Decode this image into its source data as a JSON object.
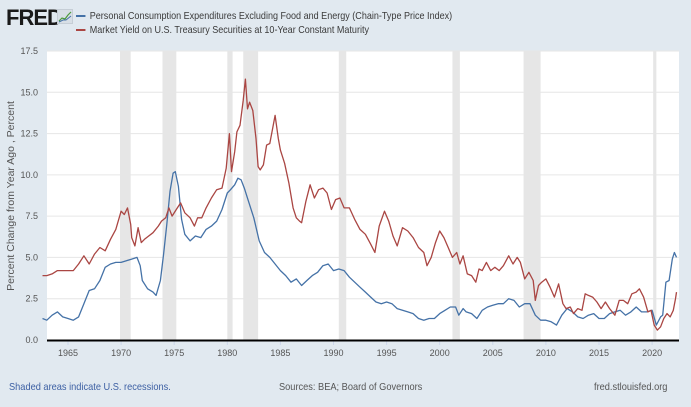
{
  "header": {
    "logo_text": "FRED",
    "logo_icon": "chart-graph-icon"
  },
  "footer": {
    "recession_note": "Shaded areas indicate U.S. recessions.",
    "sources": "Sources: BEA; Board of Governors",
    "site": "fred.stlouisfed.org"
  },
  "colors": {
    "background": "#e1e9f0",
    "plot_bg": "#ffffff",
    "series1": "#4572a7",
    "series2": "#aa4643",
    "recession": "#e6e6e6",
    "grid": "#e6e6e6",
    "link": "#3c5fa3"
  },
  "chart_data": {
    "type": "line",
    "title": "",
    "xlabel": "",
    "ylabel": "Percent Change from Year Ago , Percent",
    "xlim": [
      1962.6,
      2022.3
    ],
    "ylim": [
      0,
      17.5
    ],
    "yticks": [
      "0.0",
      "2.5",
      "5.0",
      "7.5",
      "10.0",
      "12.5",
      "15.0",
      "17.5"
    ],
    "xticks": [
      "1965",
      "1970",
      "1975",
      "1980",
      "1985",
      "1990",
      "1995",
      "2000",
      "2005",
      "2010",
      "2015",
      "2020"
    ],
    "grid": true,
    "legend_position": "top-left",
    "recessions": [
      [
        1969.9,
        1970.9
      ],
      [
        1973.9,
        1975.2
      ],
      [
        1980.0,
        1980.5
      ],
      [
        1981.5,
        1982.9
      ],
      [
        1990.5,
        1991.2
      ],
      [
        2001.2,
        2001.9
      ],
      [
        2007.9,
        2009.5
      ],
      [
        2020.1,
        2020.4
      ]
    ],
    "series": [
      {
        "name": "Personal Consumption Expenditures Excluding Food and Energy (Chain-Type Price Index)",
        "color": "#4572a7",
        "points": [
          [
            1962.6,
            1.3
          ],
          [
            1963.0,
            1.2
          ],
          [
            1963.5,
            1.5
          ],
          [
            1964.0,
            1.7
          ],
          [
            1964.5,
            1.4
          ],
          [
            1965.0,
            1.3
          ],
          [
            1965.5,
            1.2
          ],
          [
            1966.0,
            1.4
          ],
          [
            1966.5,
            2.2
          ],
          [
            1967.0,
            3.0
          ],
          [
            1967.5,
            3.1
          ],
          [
            1968.0,
            3.6
          ],
          [
            1968.5,
            4.4
          ],
          [
            1969.0,
            4.6
          ],
          [
            1969.5,
            4.7
          ],
          [
            1970.0,
            4.7
          ],
          [
            1970.5,
            4.8
          ],
          [
            1971.0,
            4.9
          ],
          [
            1971.5,
            5.0
          ],
          [
            1971.8,
            4.5
          ],
          [
            1972.0,
            3.6
          ],
          [
            1972.5,
            3.1
          ],
          [
            1973.0,
            2.9
          ],
          [
            1973.3,
            2.7
          ],
          [
            1973.7,
            3.6
          ],
          [
            1974.0,
            5.2
          ],
          [
            1974.3,
            7.0
          ],
          [
            1974.6,
            9.0
          ],
          [
            1974.9,
            10.1
          ],
          [
            1975.1,
            10.2
          ],
          [
            1975.4,
            9.3
          ],
          [
            1975.7,
            7.3
          ],
          [
            1976.0,
            6.4
          ],
          [
            1976.5,
            6.0
          ],
          [
            1977.0,
            6.3
          ],
          [
            1977.5,
            6.2
          ],
          [
            1978.0,
            6.7
          ],
          [
            1978.5,
            6.9
          ],
          [
            1979.0,
            7.2
          ],
          [
            1979.5,
            7.9
          ],
          [
            1980.0,
            8.9
          ],
          [
            1980.3,
            9.1
          ],
          [
            1980.7,
            9.4
          ],
          [
            1981.0,
            9.8
          ],
          [
            1981.3,
            9.7
          ],
          [
            1981.6,
            9.2
          ],
          [
            1982.0,
            8.4
          ],
          [
            1982.5,
            7.4
          ],
          [
            1983.0,
            6.0
          ],
          [
            1983.5,
            5.3
          ],
          [
            1984.0,
            5.0
          ],
          [
            1984.5,
            4.6
          ],
          [
            1985.0,
            4.2
          ],
          [
            1985.5,
            3.9
          ],
          [
            1986.0,
            3.5
          ],
          [
            1986.5,
            3.7
          ],
          [
            1987.0,
            3.3
          ],
          [
            1987.5,
            3.6
          ],
          [
            1988.0,
            3.9
          ],
          [
            1988.5,
            4.1
          ],
          [
            1989.0,
            4.5
          ],
          [
            1989.5,
            4.6
          ],
          [
            1990.0,
            4.2
          ],
          [
            1990.5,
            4.3
          ],
          [
            1991.0,
            4.2
          ],
          [
            1991.5,
            3.8
          ],
          [
            1992.0,
            3.5
          ],
          [
            1992.5,
            3.2
          ],
          [
            1993.0,
            2.9
          ],
          [
            1993.5,
            2.6
          ],
          [
            1994.0,
            2.3
          ],
          [
            1994.5,
            2.2
          ],
          [
            1995.0,
            2.3
          ],
          [
            1995.5,
            2.2
          ],
          [
            1996.0,
            1.9
          ],
          [
            1996.5,
            1.8
          ],
          [
            1997.0,
            1.7
          ],
          [
            1997.5,
            1.6
          ],
          [
            1998.0,
            1.3
          ],
          [
            1998.5,
            1.2
          ],
          [
            1999.0,
            1.3
          ],
          [
            1999.5,
            1.3
          ],
          [
            2000.0,
            1.6
          ],
          [
            2000.5,
            1.8
          ],
          [
            2001.0,
            2.0
          ],
          [
            2001.5,
            2.0
          ],
          [
            2001.8,
            1.5
          ],
          [
            2002.2,
            1.9
          ],
          [
            2002.5,
            1.7
          ],
          [
            2003.0,
            1.6
          ],
          [
            2003.5,
            1.3
          ],
          [
            2004.0,
            1.8
          ],
          [
            2004.5,
            2.0
          ],
          [
            2005.0,
            2.1
          ],
          [
            2005.5,
            2.2
          ],
          [
            2006.0,
            2.2
          ],
          [
            2006.5,
            2.5
          ],
          [
            2007.0,
            2.4
          ],
          [
            2007.5,
            2.0
          ],
          [
            2008.0,
            2.2
          ],
          [
            2008.5,
            2.2
          ],
          [
            2009.0,
            1.5
          ],
          [
            2009.5,
            1.2
          ],
          [
            2010.0,
            1.2
          ],
          [
            2010.5,
            1.1
          ],
          [
            2011.0,
            0.9
          ],
          [
            2011.5,
            1.5
          ],
          [
            2012.0,
            1.9
          ],
          [
            2012.5,
            1.7
          ],
          [
            2013.0,
            1.4
          ],
          [
            2013.5,
            1.3
          ],
          [
            2014.0,
            1.5
          ],
          [
            2014.5,
            1.6
          ],
          [
            2015.0,
            1.3
          ],
          [
            2015.5,
            1.3
          ],
          [
            2016.0,
            1.6
          ],
          [
            2016.5,
            1.7
          ],
          [
            2017.0,
            1.8
          ],
          [
            2017.5,
            1.5
          ],
          [
            2018.0,
            1.7
          ],
          [
            2018.5,
            2.0
          ],
          [
            2019.0,
            1.7
          ],
          [
            2019.5,
            1.7
          ],
          [
            2020.0,
            1.8
          ],
          [
            2020.4,
            0.9
          ],
          [
            2020.8,
            1.4
          ],
          [
            2021.0,
            1.5
          ],
          [
            2021.3,
            3.5
          ],
          [
            2021.6,
            3.6
          ],
          [
            2021.9,
            4.9
          ],
          [
            2022.1,
            5.3
          ],
          [
            2022.3,
            5.0
          ]
        ]
      },
      {
        "name": "Market Yield on U.S. Treasury Securities at 10-Year Constant Maturity",
        "color": "#aa4643",
        "points": [
          [
            1962.6,
            3.9
          ],
          [
            1963.0,
            3.9
          ],
          [
            1963.5,
            4.0
          ],
          [
            1964.0,
            4.2
          ],
          [
            1964.5,
            4.2
          ],
          [
            1965.0,
            4.2
          ],
          [
            1965.5,
            4.2
          ],
          [
            1966.0,
            4.6
          ],
          [
            1966.5,
            5.1
          ],
          [
            1967.0,
            4.6
          ],
          [
            1967.5,
            5.2
          ],
          [
            1968.0,
            5.6
          ],
          [
            1968.5,
            5.4
          ],
          [
            1969.0,
            6.1
          ],
          [
            1969.5,
            6.7
          ],
          [
            1970.0,
            7.8
          ],
          [
            1970.3,
            7.6
          ],
          [
            1970.6,
            8.0
          ],
          [
            1970.9,
            7.0
          ],
          [
            1971.0,
            6.2
          ],
          [
            1971.3,
            5.7
          ],
          [
            1971.6,
            6.8
          ],
          [
            1971.9,
            5.9
          ],
          [
            1972.2,
            6.1
          ],
          [
            1972.6,
            6.3
          ],
          [
            1973.0,
            6.5
          ],
          [
            1973.5,
            6.9
          ],
          [
            1973.8,
            7.2
          ],
          [
            1974.2,
            7.4
          ],
          [
            1974.5,
            8.0
          ],
          [
            1974.8,
            7.5
          ],
          [
            1975.2,
            7.9
          ],
          [
            1975.6,
            8.3
          ],
          [
            1976.0,
            7.7
          ],
          [
            1976.5,
            7.4
          ],
          [
            1976.9,
            6.9
          ],
          [
            1977.2,
            7.4
          ],
          [
            1977.6,
            7.4
          ],
          [
            1978.0,
            8.0
          ],
          [
            1978.5,
            8.6
          ],
          [
            1979.0,
            9.1
          ],
          [
            1979.5,
            9.2
          ],
          [
            1979.9,
            10.4
          ],
          [
            1980.2,
            12.5
          ],
          [
            1980.4,
            10.2
          ],
          [
            1980.7,
            11.4
          ],
          [
            1980.9,
            12.6
          ],
          [
            1981.2,
            13.0
          ],
          [
            1981.5,
            14.5
          ],
          [
            1981.7,
            15.8
          ],
          [
            1981.9,
            14.0
          ],
          [
            1982.1,
            14.4
          ],
          [
            1982.4,
            13.9
          ],
          [
            1982.7,
            12.2
          ],
          [
            1982.9,
            10.5
          ],
          [
            1983.1,
            10.3
          ],
          [
            1983.4,
            10.6
          ],
          [
            1983.7,
            11.8
          ],
          [
            1984.0,
            11.9
          ],
          [
            1984.5,
            13.6
          ],
          [
            1984.8,
            12.2
          ],
          [
            1985.0,
            11.5
          ],
          [
            1985.4,
            10.7
          ],
          [
            1985.8,
            9.5
          ],
          [
            1986.2,
            8.0
          ],
          [
            1986.5,
            7.4
          ],
          [
            1986.8,
            7.2
          ],
          [
            1987.0,
            7.1
          ],
          [
            1987.4,
            8.4
          ],
          [
            1987.8,
            9.4
          ],
          [
            1988.2,
            8.6
          ],
          [
            1988.6,
            9.1
          ],
          [
            1989.0,
            9.2
          ],
          [
            1989.4,
            8.9
          ],
          [
            1989.8,
            7.9
          ],
          [
            1990.2,
            8.5
          ],
          [
            1990.6,
            8.6
          ],
          [
            1991.0,
            8.0
          ],
          [
            1991.5,
            8.0
          ],
          [
            1992.0,
            7.3
          ],
          [
            1992.5,
            6.7
          ],
          [
            1993.0,
            6.4
          ],
          [
            1993.5,
            5.8
          ],
          [
            1993.9,
            5.3
          ],
          [
            1994.3,
            6.9
          ],
          [
            1994.8,
            7.8
          ],
          [
            1995.2,
            7.2
          ],
          [
            1995.6,
            6.3
          ],
          [
            1996.0,
            5.7
          ],
          [
            1996.5,
            6.8
          ],
          [
            1997.0,
            6.6
          ],
          [
            1997.5,
            6.2
          ],
          [
            1998.0,
            5.6
          ],
          [
            1998.5,
            5.3
          ],
          [
            1998.8,
            4.5
          ],
          [
            1999.2,
            5.0
          ],
          [
            1999.6,
            5.9
          ],
          [
            2000.0,
            6.6
          ],
          [
            2000.4,
            6.2
          ],
          [
            2000.8,
            5.6
          ],
          [
            2001.2,
            5.0
          ],
          [
            2001.6,
            5.3
          ],
          [
            2001.9,
            4.6
          ],
          [
            2002.2,
            5.1
          ],
          [
            2002.6,
            4.0
          ],
          [
            2003.0,
            3.9
          ],
          [
            2003.4,
            3.5
          ],
          [
            2003.7,
            4.3
          ],
          [
            2004.0,
            4.2
          ],
          [
            2004.4,
            4.7
          ],
          [
            2004.8,
            4.2
          ],
          [
            2005.2,
            4.4
          ],
          [
            2005.6,
            4.2
          ],
          [
            2006.0,
            4.5
          ],
          [
            2006.5,
            5.1
          ],
          [
            2006.9,
            4.6
          ],
          [
            2007.3,
            5.0
          ],
          [
            2007.6,
            4.7
          ],
          [
            2008.0,
            3.7
          ],
          [
            2008.4,
            4.1
          ],
          [
            2008.8,
            3.6
          ],
          [
            2009.0,
            2.4
          ],
          [
            2009.3,
            3.3
          ],
          [
            2009.6,
            3.5
          ],
          [
            2010.0,
            3.7
          ],
          [
            2010.4,
            3.2
          ],
          [
            2010.8,
            2.6
          ],
          [
            2011.2,
            3.4
          ],
          [
            2011.6,
            2.2
          ],
          [
            2011.9,
            1.9
          ],
          [
            2012.3,
            2.0
          ],
          [
            2012.6,
            1.6
          ],
          [
            2013.0,
            1.9
          ],
          [
            2013.4,
            1.8
          ],
          [
            2013.7,
            2.8
          ],
          [
            2014.0,
            2.7
          ],
          [
            2014.4,
            2.6
          ],
          [
            2014.8,
            2.3
          ],
          [
            2015.2,
            1.9
          ],
          [
            2015.6,
            2.3
          ],
          [
            2016.0,
            1.9
          ],
          [
            2016.5,
            1.5
          ],
          [
            2016.9,
            2.4
          ],
          [
            2017.3,
            2.4
          ],
          [
            2017.7,
            2.2
          ],
          [
            2018.1,
            2.8
          ],
          [
            2018.5,
            2.9
          ],
          [
            2018.8,
            3.1
          ],
          [
            2019.2,
            2.6
          ],
          [
            2019.6,
            1.7
          ],
          [
            2019.9,
            1.8
          ],
          [
            2020.2,
            0.9
          ],
          [
            2020.5,
            0.6
          ],
          [
            2020.8,
            0.8
          ],
          [
            2021.1,
            1.3
          ],
          [
            2021.4,
            1.6
          ],
          [
            2021.7,
            1.4
          ],
          [
            2022.0,
            1.8
          ],
          [
            2022.2,
            2.5
          ],
          [
            2022.3,
            2.9
          ]
        ]
      }
    ]
  }
}
